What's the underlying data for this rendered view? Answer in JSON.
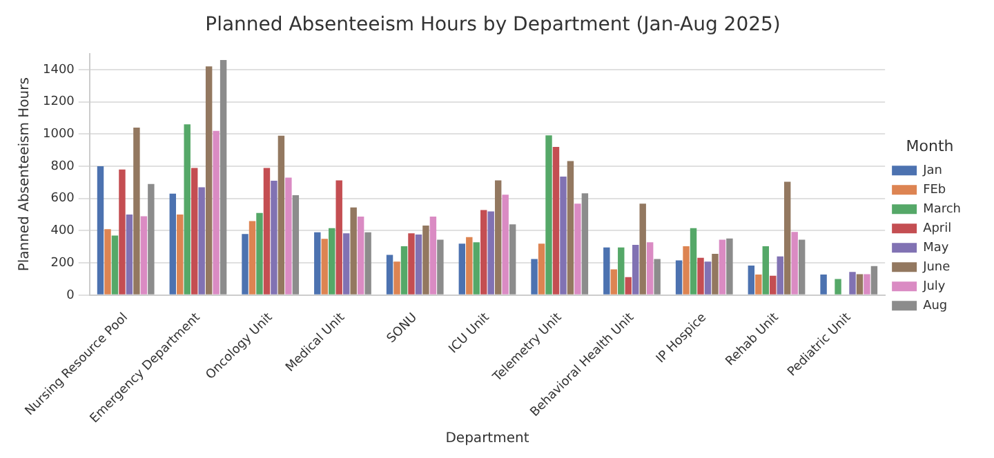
{
  "chart_data": {
    "type": "bar",
    "title": "Planned Absenteeism Hours by Department (Jan-Aug 2025)",
    "xlabel": "Department",
    "ylabel": "Planned Absenteeism Hours",
    "legend_title": "Month",
    "categories": [
      "Nursing Resource Pool",
      "Emergency Department",
      "Oncology Unit",
      "Medical Unit",
      "SONU",
      "ICU Unit",
      "Telemetry Unit",
      "Behavioral Health Unit",
      "IP Hospice",
      "Rehab Unit",
      "Pediatric Unit"
    ],
    "series": [
      {
        "name": "Jan",
        "color": "#4c72b0",
        "values": [
          800,
          630,
          380,
          390,
          250,
          320,
          224,
          296,
          216,
          184,
          128
        ]
      },
      {
        "name": "FEb",
        "color": "#dd8452",
        "values": [
          410,
          500,
          460,
          350,
          208,
          360,
          320,
          160,
          304,
          128,
          null
        ]
      },
      {
        "name": "March",
        "color": "#55a868",
        "values": [
          370,
          1060,
          510,
          416,
          304,
          328,
          992,
          296,
          416,
          304,
          100
        ]
      },
      {
        "name": "April",
        "color": "#c44e52",
        "values": [
          780,
          790,
          790,
          712,
          384,
          528,
          920,
          112,
          232,
          120,
          null
        ]
      },
      {
        "name": "May",
        "color": "#8172b3",
        "values": [
          500,
          670,
          710,
          384,
          376,
          520,
          736,
          312,
          208,
          240,
          144
        ]
      },
      {
        "name": "June",
        "color": "#937860",
        "values": [
          1040,
          1420,
          990,
          544,
          432,
          712,
          832,
          568,
          256,
          704,
          130
        ]
      },
      {
        "name": "July",
        "color": "#da8bc3",
        "values": [
          490,
          1020,
          730,
          488,
          488,
          624,
          568,
          328,
          344,
          392,
          130
        ]
      },
      {
        "name": "Aug",
        "color": "#8c8c8c",
        "values": [
          690,
          1460,
          620,
          390,
          344,
          440,
          632,
          224,
          352,
          344,
          180
        ]
      }
    ],
    "ylim": [
      0,
      1500
    ],
    "yticks": [
      0,
      200,
      400,
      600,
      800,
      1000,
      1200,
      1400
    ],
    "grid": "y",
    "legend": "right"
  }
}
